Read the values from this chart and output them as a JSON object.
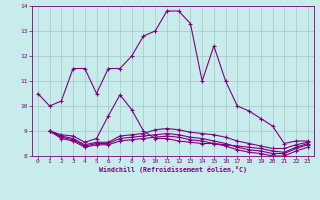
{
  "xlabel": "Windchill (Refroidissement éolien,°C)",
  "bg_color": "#c8ecec",
  "line_color": "#800080",
  "grid_color": "#a0c8c8",
  "xlim": [
    -0.5,
    23.5
  ],
  "ylim": [
    8,
    14
  ],
  "xticks": [
    0,
    1,
    2,
    3,
    4,
    5,
    6,
    7,
    8,
    9,
    10,
    11,
    12,
    13,
    14,
    15,
    16,
    17,
    18,
    19,
    20,
    21,
    22,
    23
  ],
  "yticks": [
    8,
    9,
    10,
    11,
    12,
    13,
    14
  ],
  "line1_x": [
    0,
    1,
    2,
    3,
    4,
    5,
    6,
    7,
    8,
    9,
    10,
    11,
    12,
    13,
    14,
    15,
    16,
    17,
    18,
    19,
    20,
    21,
    22,
    23
  ],
  "line1_y": [
    10.5,
    10.0,
    10.2,
    11.5,
    11.5,
    10.5,
    11.5,
    11.5,
    12.0,
    12.8,
    13.0,
    13.8,
    13.8,
    13.3,
    11.0,
    12.4,
    11.0,
    10.0,
    9.8,
    9.5,
    9.2,
    8.5,
    8.6,
    8.6
  ],
  "line2_x": [
    1,
    2,
    3,
    4,
    5,
    6,
    7,
    8,
    9,
    10,
    11,
    12,
    13,
    14,
    15,
    16,
    17,
    18,
    19,
    20,
    21,
    22,
    23
  ],
  "line2_y": [
    9.0,
    8.85,
    8.8,
    8.55,
    8.7,
    9.6,
    10.45,
    9.85,
    9.0,
    8.7,
    8.7,
    8.6,
    8.55,
    8.5,
    8.5,
    8.45,
    8.4,
    8.35,
    8.3,
    8.2,
    8.15,
    8.35,
    8.5
  ],
  "line3_x": [
    1,
    2,
    3,
    4,
    5,
    6,
    7,
    8,
    9,
    10,
    11,
    12,
    13,
    14,
    15,
    16,
    17,
    18,
    19,
    20,
    21,
    22,
    23
  ],
  "line3_y": [
    9.0,
    8.8,
    8.7,
    8.45,
    8.55,
    8.55,
    8.8,
    8.85,
    8.9,
    9.05,
    9.1,
    9.05,
    8.95,
    8.9,
    8.85,
    8.75,
    8.6,
    8.5,
    8.4,
    8.3,
    8.3,
    8.45,
    8.55
  ],
  "line4_x": [
    1,
    2,
    3,
    4,
    5,
    6,
    7,
    8,
    9,
    10,
    11,
    12,
    13,
    14,
    15,
    16,
    17,
    18,
    19,
    20,
    21,
    22,
    23
  ],
  "line4_y": [
    9.0,
    8.75,
    8.65,
    8.4,
    8.5,
    8.5,
    8.7,
    8.75,
    8.8,
    8.85,
    8.9,
    8.85,
    8.75,
    8.7,
    8.6,
    8.5,
    8.35,
    8.25,
    8.2,
    8.1,
    8.1,
    8.3,
    8.45
  ],
  "line5_x": [
    1,
    2,
    3,
    4,
    5,
    6,
    7,
    8,
    9,
    10,
    11,
    12,
    13,
    14,
    15,
    16,
    17,
    18,
    19,
    20,
    21,
    22,
    23
  ],
  "line5_y": [
    9.0,
    8.7,
    8.6,
    8.35,
    8.45,
    8.45,
    8.6,
    8.65,
    8.7,
    8.75,
    8.8,
    8.75,
    8.65,
    8.6,
    8.5,
    8.4,
    8.25,
    8.15,
    8.1,
    8.0,
    8.0,
    8.2,
    8.35
  ]
}
